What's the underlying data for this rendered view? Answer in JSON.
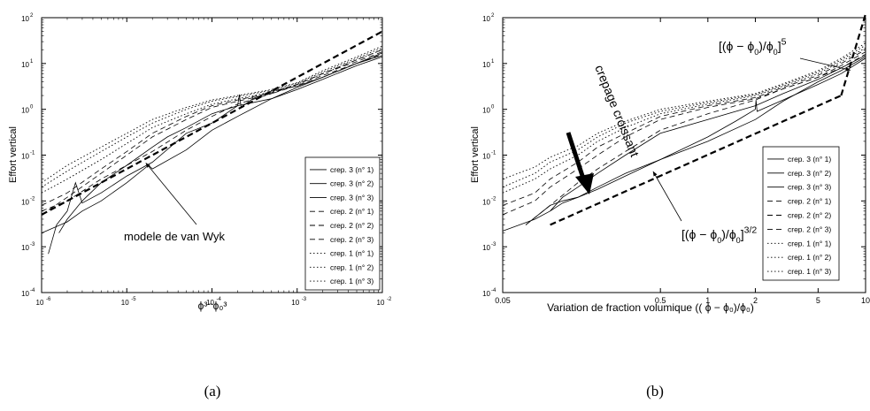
{
  "chart_data": [
    {
      "type": "line",
      "panel_label": "(a)",
      "xscale": "log",
      "yscale": "log",
      "xlim": [
        1e-06,
        0.01
      ],
      "ylim": [
        0.0001,
        100
      ],
      "xlabel": "ϕ³⁻ϕ₀³",
      "ylabel": "Effort vertical",
      "x_ticks": [
        "10",
        "10",
        "10",
        "10",
        "10"
      ],
      "x_tick_exps": [
        "-6",
        "-5",
        "-4",
        "-3",
        "-2"
      ],
      "y_ticks": [
        "10",
        "10",
        "10",
        "10",
        "10",
        "10",
        "10"
      ],
      "y_tick_exps": [
        "-4",
        "-3",
        "-2",
        "-1",
        "0",
        "1",
        "2"
      ],
      "legend_position": "right",
      "series": [
        {
          "name": "crep. 3 (n° 1)",
          "style": "solid",
          "x": [
            1.2e-06,
            1.5e-06,
            2e-06,
            2.5e-06,
            3e-06,
            5e-06,
            1e-05,
            2e-05,
            5e-05,
            0.0001,
            0.0002,
            0.00021,
            0.00022,
            0.0003,
            0.0005,
            0.001,
            0.002,
            0.005,
            0.01
          ],
          "y": [
            0.0007,
            0.003,
            0.006,
            0.025,
            0.009,
            0.015,
            0.035,
            0.07,
            0.3,
            0.5,
            1.2,
            2.1,
            1.1,
            1.7,
            2.5,
            3.2,
            5,
            10,
            17
          ]
        },
        {
          "name": "crep. 3 (n° 2)",
          "style": "solid",
          "x": [
            1e-06,
            2e-06,
            3e-06,
            5e-06,
            1e-05,
            1.8e-05,
            2e-05,
            5e-05,
            0.0001,
            0.0002,
            0.0005,
            0.001,
            0.002,
            0.005,
            0.01
          ],
          "y": [
            0.002,
            0.0035,
            0.006,
            0.01,
            0.025,
            0.06,
            0.05,
            0.13,
            0.35,
            0.7,
            1.7,
            3,
            5,
            10,
            15
          ]
        },
        {
          "name": "crep. 3 (n° 3)",
          "style": "solid",
          "x": [
            1.6e-06,
            2e-06,
            3e-06,
            5e-06,
            1e-05,
            2e-05,
            3e-05,
            5e-05,
            0.0001,
            0.0002,
            0.0005,
            0.001,
            0.002,
            0.005,
            0.01
          ],
          "y": [
            0.002,
            0.004,
            0.01,
            0.025,
            0.06,
            0.15,
            0.25,
            0.4,
            0.8,
            1.2,
            1.7,
            2.7,
            4.5,
            9,
            14
          ]
        },
        {
          "name": "crep. 2 (n° 1)",
          "style": "dashed",
          "x": [
            1e-06,
            2e-06,
            5e-06,
            1e-05,
            2e-05,
            5e-05,
            0.0001,
            0.0002,
            0.0005,
            0.001,
            0.002,
            0.005,
            0.01
          ],
          "y": [
            0.006,
            0.01,
            0.03,
            0.06,
            0.12,
            0.35,
            0.7,
            1.3,
            2.2,
            3.5,
            6,
            12,
            20
          ]
        },
        {
          "name": "crep. 2 (n° 2)",
          "style": "dashed",
          "x": [
            1e-06,
            2e-06,
            5e-06,
            1e-05,
            2e-05,
            5e-05,
            0.0001,
            0.0002,
            0.0005,
            0.001,
            0.002,
            0.005,
            0.01
          ],
          "y": [
            0.008,
            0.015,
            0.05,
            0.12,
            0.3,
            0.7,
            1.2,
            1.6,
            2.3,
            3.5,
            6,
            11,
            18
          ]
        },
        {
          "name": "crep. 2 (n° 3)",
          "style": "dashed",
          "x": [
            1e-06,
            2e-06,
            5e-06,
            1e-05,
            2e-05,
            5e-05,
            0.0001,
            0.0002,
            0.0005,
            0.001,
            0.002,
            0.005,
            0.01
          ],
          "y": [
            0.005,
            0.012,
            0.04,
            0.1,
            0.25,
            0.6,
            1.1,
            1.5,
            2.2,
            3.3,
            5.5,
            10,
            16
          ]
        },
        {
          "name": "crep. 1 (n° 1)",
          "style": "dotted",
          "x": [
            1e-06,
            2e-06,
            5e-06,
            1e-05,
            2e-05,
            5e-05,
            0.0001,
            0.0002,
            0.0005,
            0.001,
            0.002,
            0.005,
            0.01
          ],
          "y": [
            0.015,
            0.03,
            0.08,
            0.18,
            0.4,
            0.8,
            1.3,
            1.7,
            2.4,
            3.5,
            6,
            12,
            20
          ]
        },
        {
          "name": "crep. 1 (n° 2)",
          "style": "dotted",
          "x": [
            1e-06,
            2e-06,
            5e-06,
            1e-05,
            2e-05,
            5e-05,
            0.0001,
            0.0002,
            0.0005,
            0.001,
            0.002,
            0.005,
            0.01
          ],
          "y": [
            0.02,
            0.045,
            0.12,
            0.25,
            0.5,
            1,
            1.5,
            1.9,
            2.6,
            3.7,
            6.5,
            13,
            22
          ]
        },
        {
          "name": "crep. 1 (n° 3)",
          "style": "dotted",
          "x": [
            1e-06,
            2e-06,
            5e-06,
            1e-05,
            2e-05,
            5e-05,
            0.0001,
            0.0002,
            0.0005,
            0.001,
            0.002,
            0.005,
            0.01
          ],
          "y": [
            0.025,
            0.06,
            0.15,
            0.3,
            0.6,
            1.1,
            1.6,
            2,
            2.7,
            3.8,
            7,
            14,
            24
          ]
        }
      ],
      "reference_lines": [
        {
          "style": "bold-dashed",
          "x": [
            1e-06,
            0.01
          ],
          "y": [
            0.005,
            50
          ]
        }
      ],
      "annotations": [
        {
          "text": "modele de van Wyk",
          "x_anchor": 1.6e-05,
          "y_anchor": 0.08
        }
      ]
    },
    {
      "type": "line",
      "panel_label": "(b)",
      "xscale": "log",
      "yscale": "log",
      "xlim": [
        0.05,
        10
      ],
      "ylim": [
        0.0001,
        100
      ],
      "xlabel": "Variation de fraction volumique ((  ϕ − ϕ₀)/ϕ₀)",
      "ylabel": "Effort vertical",
      "x_ticks": [
        "0.05",
        "0.5",
        "1",
        "2",
        "5",
        "10"
      ],
      "x_tick_values": [
        0.05,
        0.5,
        1,
        2,
        5,
        10
      ],
      "y_ticks": [
        "10",
        "10",
        "10",
        "10",
        "10",
        "10",
        "10"
      ],
      "y_tick_exps": [
        "-4",
        "-3",
        "-2",
        "-1",
        "0",
        "1",
        "2"
      ],
      "legend_position": "right",
      "series": [
        {
          "name": "crep. 3 (n° 1)",
          "style": "solid",
          "x": [
            0.05,
            0.08,
            0.1,
            0.12,
            0.15,
            0.2,
            0.3,
            0.5,
            1,
            1.5,
            2,
            2.02,
            2.05,
            3,
            5,
            7,
            10
          ],
          "y": [
            0.0022,
            0.004,
            0.006,
            0.009,
            0.012,
            0.018,
            0.035,
            0.08,
            0.25,
            0.55,
            1,
            1.6,
            0.9,
            1.6,
            3.5,
            6,
            13
          ]
        },
        {
          "name": "crep. 3 (n° 2)",
          "style": "solid",
          "x": [
            0.07,
            0.1,
            0.12,
            0.15,
            0.2,
            0.3,
            0.5,
            1,
            2,
            3,
            5,
            7,
            10
          ],
          "y": [
            0.003,
            0.008,
            0.01,
            0.012,
            0.02,
            0.04,
            0.08,
            0.2,
            0.6,
            1.5,
            4,
            7,
            14
          ]
        },
        {
          "name": "crep. 3 (n° 3)",
          "style": "solid",
          "x": [
            0.1,
            0.12,
            0.15,
            0.2,
            0.3,
            0.5,
            1,
            2,
            3,
            5,
            7,
            10
          ],
          "y": [
            0.006,
            0.012,
            0.02,
            0.04,
            0.1,
            0.3,
            0.6,
            1.2,
            2.2,
            4.5,
            8,
            15
          ]
        },
        {
          "name": "crep. 2 (n° 1)",
          "style": "dashed",
          "x": [
            0.07,
            0.1,
            0.15,
            0.2,
            0.3,
            0.5,
            1,
            2,
            3,
            5,
            7,
            10
          ],
          "y": [
            0.003,
            0.008,
            0.025,
            0.05,
            0.12,
            0.35,
            0.8,
            1.6,
            2.8,
            5,
            8,
            16
          ]
        },
        {
          "name": "crep. 2 (n° 2)",
          "style": "dashed",
          "x": [
            0.05,
            0.08,
            0.1,
            0.15,
            0.2,
            0.3,
            0.5,
            1,
            2,
            3,
            5,
            7,
            10
          ],
          "y": [
            0.005,
            0.01,
            0.02,
            0.05,
            0.1,
            0.25,
            0.6,
            1.1,
            1.7,
            2.8,
            5,
            9,
            18
          ]
        },
        {
          "name": "crep. 2 (n° 3)",
          "style": "dashed",
          "x": [
            0.05,
            0.08,
            0.1,
            0.15,
            0.2,
            0.3,
            0.5,
            1,
            2,
            3,
            5,
            7,
            10
          ],
          "y": [
            0.008,
            0.015,
            0.03,
            0.07,
            0.15,
            0.3,
            0.7,
            1.2,
            1.8,
            3,
            5.5,
            10,
            20
          ]
        },
        {
          "name": "crep. 1 (n° 1)",
          "style": "dotted",
          "x": [
            0.05,
            0.08,
            0.1,
            0.15,
            0.2,
            0.3,
            0.5,
            1,
            2,
            3,
            5,
            7,
            10
          ],
          "y": [
            0.015,
            0.03,
            0.05,
            0.1,
            0.2,
            0.4,
            0.8,
            1.3,
            2,
            3.2,
            6,
            11,
            22
          ]
        },
        {
          "name": "crep. 1 (n° 2)",
          "style": "dotted",
          "x": [
            0.05,
            0.08,
            0.1,
            0.15,
            0.2,
            0.3,
            0.5,
            1,
            2,
            3,
            5,
            7,
            10
          ],
          "y": [
            0.02,
            0.04,
            0.07,
            0.13,
            0.25,
            0.5,
            0.9,
            1.4,
            2.1,
            3.4,
            6.5,
            12,
            25
          ]
        },
        {
          "name": "crep. 1 (n° 3)",
          "style": "dotted",
          "x": [
            0.05,
            0.08,
            0.1,
            0.15,
            0.2,
            0.3,
            0.5,
            1,
            2,
            3,
            5,
            7,
            10
          ],
          "y": [
            0.03,
            0.055,
            0.09,
            0.16,
            0.3,
            0.55,
            1,
            1.5,
            2.2,
            3.6,
            7,
            13,
            28
          ]
        }
      ],
      "reference_lines": [
        {
          "style": "bold-dashed",
          "x": [
            0.1,
            7
          ],
          "y": [
            0.003,
            2
          ]
        },
        {
          "style": "bold-dashed",
          "x": [
            7,
            10
          ],
          "y": [
            2,
            120
          ]
        }
      ],
      "annotations": [
        {
          "text_main": "[(ϕ − ϕ",
          "text_sub": "0",
          "text_mid": ")/ϕ",
          "text_sub2": "0",
          "text_end": "]",
          "text_sup": "5",
          "x_anchor": 8,
          "y_anchor": 6
        },
        {
          "text_main": "[(ϕ − ϕ",
          "text_sub": "0",
          "text_mid": ")/ϕ",
          "text_sub2": "0",
          "text_end": "]",
          "text_sup": "3/2",
          "x_anchor": 0.45,
          "y_anchor": 0.04
        },
        {
          "text": "crepage croissant"
        }
      ]
    }
  ]
}
